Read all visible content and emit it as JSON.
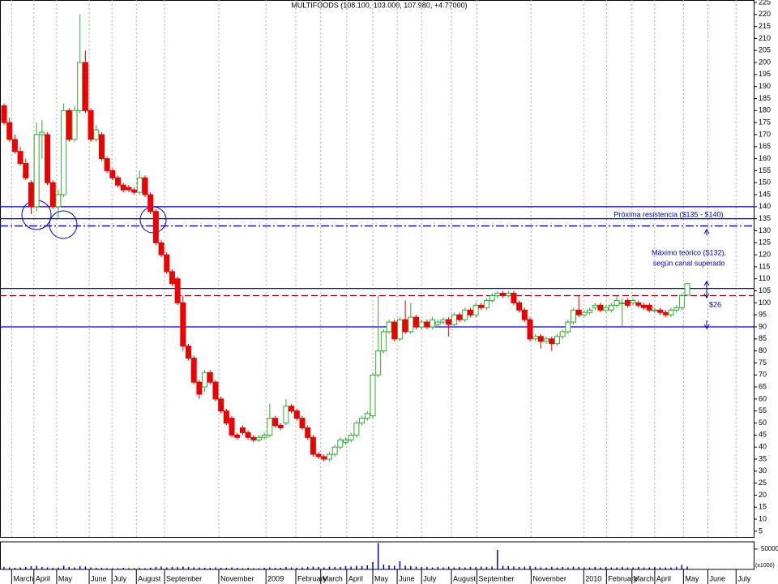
{
  "chart_data": {
    "type": "candlestick",
    "title": "MULTIFOODS (108.100, 103.000, 107.980, +4.77000)",
    "open": [
      182,
      175,
      168,
      163,
      158,
      150,
      140,
      170,
      170,
      150,
      140,
      145,
      180,
      168,
      180,
      200,
      180,
      168,
      170,
      160,
      155,
      152,
      149,
      148,
      147,
      146,
      152,
      145,
      138,
      125,
      120,
      113,
      110,
      100,
      82,
      77,
      67,
      65,
      71,
      67,
      60,
      55,
      52,
      45,
      48,
      46,
      44,
      43,
      44,
      45,
      52,
      49,
      50,
      57,
      55,
      52,
      48,
      44,
      37,
      36,
      35,
      37,
      40,
      42,
      43,
      45,
      50,
      52,
      53,
      70,
      80,
      88,
      92,
      85,
      93,
      88,
      94,
      90,
      92,
      90,
      91,
      92,
      93,
      91,
      95,
      93,
      97,
      95,
      99,
      98,
      101,
      103,
      104,
      103,
      104,
      100,
      97,
      93,
      85,
      86,
      84,
      85,
      83,
      86,
      88,
      92,
      97,
      95,
      96,
      98,
      99,
      97,
      97,
      99,
      100,
      101,
      100,
      100,
      99,
      99,
      97,
      97,
      96,
      95,
      97,
      98,
      103.2
    ],
    "high": [
      183,
      177,
      170,
      165,
      160,
      151,
      175,
      176,
      171,
      151,
      147,
      183,
      181,
      182,
      220,
      205,
      181,
      174,
      171,
      161,
      156,
      153,
      150,
      149,
      148,
      155,
      153,
      146,
      139,
      126,
      121,
      114,
      111,
      103,
      83,
      78,
      68,
      72,
      72,
      68,
      61,
      56,
      53,
      46,
      49,
      47,
      45,
      45,
      46,
      58,
      53,
      50,
      60,
      58,
      56,
      53,
      49,
      45,
      38,
      37,
      38,
      41,
      44,
      44,
      46,
      51,
      53,
      55,
      71,
      103,
      89,
      93,
      93,
      94,
      101,
      100,
      95,
      93,
      93,
      94,
      93,
      94,
      94,
      96,
      96,
      98,
      98,
      100,
      100,
      102,
      104,
      105,
      105,
      105,
      105,
      101,
      98,
      94,
      87,
      87,
      86,
      86,
      87,
      89,
      93,
      98,
      103,
      97,
      98,
      100,
      100,
      99,
      100,
      103,
      102,
      102,
      102,
      101,
      100,
      100,
      98,
      98,
      97,
      98,
      99,
      104,
      108.1
    ],
    "low": [
      174,
      167,
      162,
      157,
      151,
      137,
      138,
      160,
      149,
      139,
      135,
      144,
      167,
      167,
      179,
      179,
      167,
      167,
      159,
      154,
      151,
      148,
      146,
      146,
      145,
      145,
      144,
      137,
      124,
      119,
      112,
      107,
      99,
      80,
      76,
      66,
      60,
      63,
      66,
      59,
      54,
      49,
      44,
      43,
      45,
      43,
      42,
      42,
      43,
      44,
      48,
      47,
      49,
      54,
      51,
      47,
      43,
      36,
      35,
      34,
      34,
      36,
      39,
      41,
      42,
      44,
      49,
      51,
      52,
      69,
      79,
      87,
      84,
      84,
      87,
      87,
      89,
      89,
      89,
      89,
      90,
      91,
      86,
      90,
      92,
      92,
      94,
      94,
      97,
      97,
      100,
      102,
      102,
      102,
      99,
      96,
      92,
      84,
      84,
      81,
      83,
      80,
      82,
      85,
      87,
      91,
      94,
      94,
      95,
      97,
      96,
      96,
      96,
      98,
      90,
      98,
      99,
      98,
      97,
      96,
      96,
      95,
      94,
      94,
      96,
      97,
      103
    ],
    "close": [
      175,
      168,
      163,
      158,
      152,
      140,
      170,
      171,
      150,
      140,
      145,
      180,
      168,
      180,
      200,
      180,
      168,
      172,
      160,
      155,
      152,
      149,
      147,
      147,
      146,
      152,
      145,
      138,
      125,
      120,
      113,
      108,
      100,
      82,
      77,
      67,
      62,
      71,
      67,
      60,
      55,
      50,
      45,
      44,
      46,
      44,
      43,
      44,
      45,
      52,
      49,
      48,
      57,
      55,
      52,
      48,
      44,
      37,
      36,
      35,
      37,
      40,
      43,
      43,
      45,
      50,
      52,
      54,
      70,
      80,
      88,
      92,
      85,
      93,
      88,
      94,
      90,
      92,
      90,
      93,
      92,
      93,
      91,
      95,
      93,
      97,
      95,
      99,
      98,
      101,
      103,
      104,
      103,
      104,
      100,
      97,
      93,
      85,
      86,
      84,
      85,
      83,
      86,
      88,
      92,
      97,
      95,
      96,
      97,
      99,
      97,
      98,
      99,
      101,
      100,
      99,
      101,
      99,
      98,
      97,
      97,
      96,
      95,
      97,
      98,
      103,
      107.98
    ],
    "volume": [
      6000,
      5000,
      4000,
      5000,
      6000,
      8000,
      9000,
      6000,
      5000,
      4000,
      5000,
      9000,
      6000,
      5000,
      8000,
      7000,
      5000,
      4000,
      4000,
      3000,
      3000,
      3000,
      4000,
      3000,
      3000,
      4000,
      3000,
      4000,
      6000,
      7000,
      5000,
      6000,
      6000,
      7000,
      6000,
      5000,
      5000,
      4000,
      4000,
      5000,
      4000,
      4000,
      5000,
      4000,
      3000,
      4000,
      3000,
      3000,
      4000,
      5000,
      4000,
      4000,
      6000,
      5000,
      4000,
      5000,
      6000,
      7000,
      6000,
      5000,
      7000,
      6000,
      6000,
      8000,
      7000,
      9000,
      8000,
      10000,
      18000,
      65000,
      12000,
      10000,
      9000,
      20000,
      9000,
      8000,
      7000,
      6000,
      6000,
      5000,
      6000,
      5000,
      7000,
      5000,
      6000,
      5000,
      6000,
      6000,
      7000,
      6000,
      7000,
      48000,
      9000,
      8000,
      7000,
      6000,
      7000,
      8000,
      6000,
      5000,
      5000,
      6000,
      5000,
      6000,
      5000,
      7000,
      6000,
      5000,
      5000,
      6000,
      5000,
      6000,
      5000,
      5000,
      6000,
      5000,
      5000,
      6000,
      5000,
      5000,
      6000,
      5000,
      5000,
      5000,
      6000,
      11000,
      7000
    ],
    "up_color": "#33aa33",
    "down_color": "#ee0000",
    "xlim": [
      -0.75,
      138.25
    ],
    "ylim": [
      2.6,
      226
    ],
    "xticks": [
      {
        "value": 1.4,
        "label": "March"
      },
      {
        "value": 5.5,
        "label": "April"
      },
      {
        "value": 9.7,
        "label": "May"
      },
      {
        "value": 15.7,
        "label": "June"
      },
      {
        "value": 19.9,
        "label": "July"
      },
      {
        "value": 24.4,
        "label": "August"
      },
      {
        "value": 29.6,
        "label": "September"
      },
      {
        "value": 39.6,
        "label": "November"
      },
      {
        "value": 48.3,
        "label": "2009"
      },
      {
        "value": 53.8,
        "label": "February"
      },
      {
        "value": 58.4,
        "label": "March"
      },
      {
        "value": 63.2,
        "label": "April"
      },
      {
        "value": 68,
        "label": "May"
      },
      {
        "value": 72.5,
        "label": "June"
      },
      {
        "value": 77,
        "label": "July"
      },
      {
        "value": 82.5,
        "label": "August"
      },
      {
        "value": 87.2,
        "label": "September"
      },
      {
        "value": 97.2,
        "label": "November"
      },
      {
        "value": 106.9,
        "label": "2010"
      },
      {
        "value": 111.1,
        "label": "February"
      },
      {
        "value": 115.8,
        "label": "March"
      },
      {
        "value": 120,
        "label": "April"
      },
      {
        "value": 125.3,
        "label": "May"
      },
      {
        "value": 129.8,
        "label": "June"
      },
      {
        "value": 135,
        "label": "July"
      }
    ],
    "yticks": [
      5,
      10,
      15,
      20,
      25,
      30,
      35,
      40,
      45,
      50,
      55,
      60,
      65,
      70,
      75,
      80,
      85,
      90,
      95,
      100,
      105,
      110,
      115,
      120,
      125,
      130,
      135,
      140,
      145,
      150,
      155,
      160,
      165,
      170,
      175,
      180,
      185,
      190,
      195,
      200,
      205,
      210,
      215,
      220,
      225
    ],
    "volume_lim": [
      0,
      68000
    ],
    "volume_ticks": [
      {
        "value": 50000,
        "label": "- 50000"
      }
    ],
    "volume_unit": "(x1000)",
    "grid": true,
    "levels": [
      {
        "value": 140,
        "style": "solid",
        "color": "#0000cc"
      },
      {
        "value": 135,
        "style": "solid",
        "color": "#0000cc"
      },
      {
        "value": 132,
        "style": "dashdot",
        "color": "#0000cc"
      },
      {
        "value": 106,
        "style": "solid",
        "color": "#0000cc"
      },
      {
        "value": 103,
        "style": "dashed",
        "color": "#800000"
      },
      {
        "value": 90,
        "style": "solid",
        "color": "#0000cc"
      }
    ],
    "annotations": [
      "Próxima resistencia ($135 - $140)",
      "Máximo teórico ($132),",
      "según canal superado",
      "$26"
    ]
  }
}
